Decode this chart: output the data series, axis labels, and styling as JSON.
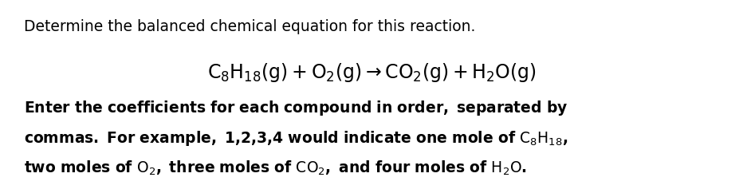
{
  "bg_color": "#ffffff",
  "line1": "Determine the balanced chemical equation for this reaction.",
  "line1_fontsize": 13.5,
  "equation_fontsize": 17,
  "bold_fontsize": 13.5,
  "figsize": [
    9.32,
    2.42
  ],
  "dpi": 100
}
